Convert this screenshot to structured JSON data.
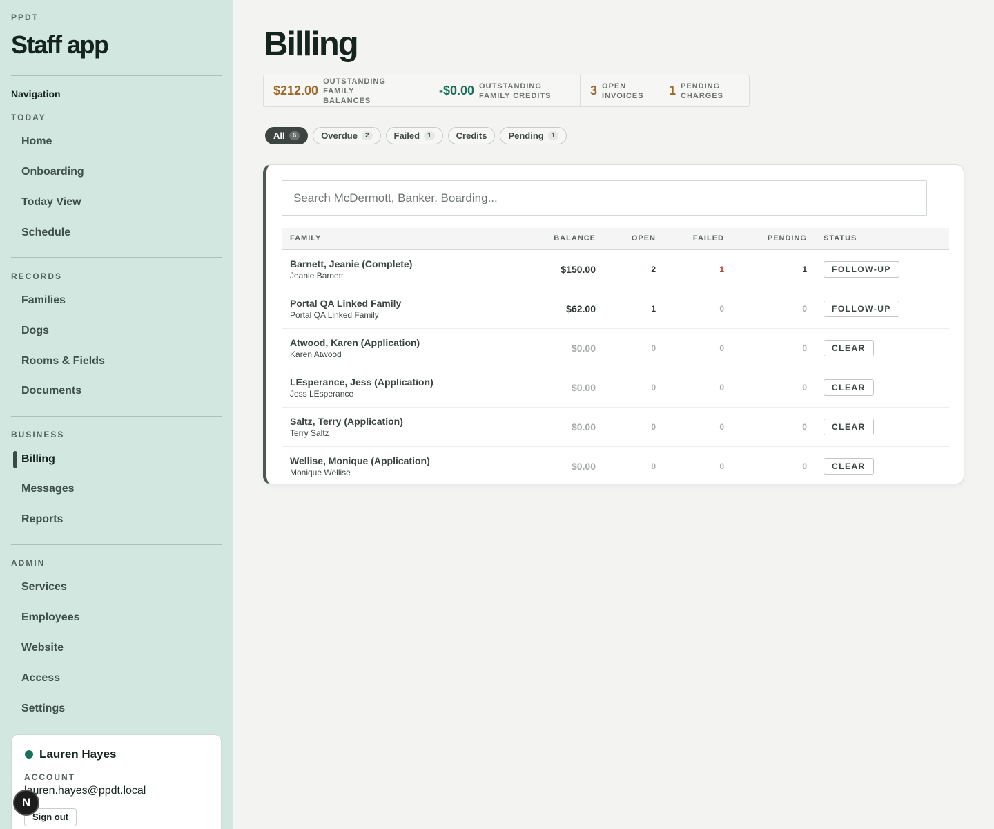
{
  "sidebar": {
    "brand_small": "PPDT",
    "brand_title": "Staff app",
    "nav_heading": "Navigation",
    "sections": {
      "today": {
        "label": "TODAY",
        "items": [
          "Home",
          "Onboarding",
          "Today View",
          "Schedule"
        ]
      },
      "records": {
        "label": "RECORDS",
        "items": [
          "Families",
          "Dogs",
          "Rooms & Fields",
          "Documents"
        ]
      },
      "business": {
        "label": "BUSINESS",
        "items": [
          "Billing",
          "Messages",
          "Reports"
        ]
      },
      "admin": {
        "label": "ADMIN",
        "items": [
          "Services",
          "Employees",
          "Website",
          "Access",
          "Settings"
        ]
      }
    },
    "active_item": "Billing",
    "account": {
      "name": "Lauren Hayes",
      "label": "ACCOUNT",
      "email": "lauren.hayes@ppdt.local",
      "signout_label": "Sign out",
      "status_color": "#1b6f5d"
    },
    "badge_letter": "N"
  },
  "main": {
    "title": "Billing",
    "stats": [
      {
        "value": "$212.00",
        "label1": "OUTSTANDING FAMILY",
        "label2": "BALANCES",
        "color": "#a0692c"
      },
      {
        "value": "-$0.00",
        "label1": "OUTSTANDING",
        "label2": "FAMILY CREDITS",
        "color": "#1b6f5d"
      },
      {
        "value": "3",
        "label1": "OPEN",
        "label2": "INVOICES",
        "color": "#a0692c"
      },
      {
        "value": "1",
        "label1": "PENDING",
        "label2": "CHARGES",
        "color": "#a0692c"
      }
    ],
    "filters": [
      {
        "label": "All",
        "count": "6",
        "active": true
      },
      {
        "label": "Overdue",
        "count": "2"
      },
      {
        "label": "Failed",
        "count": "1"
      },
      {
        "label": "Credits",
        "count": ""
      },
      {
        "label": "Pending",
        "count": "1"
      }
    ],
    "search": {
      "placeholder": "Search McDermott, Banker, Boarding..."
    },
    "table": {
      "headers": {
        "family": "FAMILY",
        "balance": "BALANCE",
        "open": "OPEN",
        "failed": "FAILED",
        "pending": "PENDING",
        "status": "STATUS"
      },
      "rows": [
        {
          "name": "Barnett, Jeanie (Complete)",
          "contact": "Jeanie Barnett",
          "balance": "$150.00",
          "open": "2",
          "failed": "1",
          "pending": "1",
          "status": "FOLLOW-UP"
        },
        {
          "name": "Portal QA Linked Family",
          "contact": "Portal QA Linked Family",
          "balance": "$62.00",
          "open": "1",
          "failed": "0",
          "pending": "0",
          "status": "FOLLOW-UP"
        },
        {
          "name": "Atwood, Karen (Application)",
          "contact": "Karen Atwood",
          "balance": "$0.00",
          "open": "0",
          "failed": "0",
          "pending": "0",
          "status": "CLEAR"
        },
        {
          "name": "LEsperance, Jess (Application)",
          "contact": "Jess LEsperance",
          "balance": "$0.00",
          "open": "0",
          "failed": "0",
          "pending": "0",
          "status": "CLEAR"
        },
        {
          "name": "Saltz, Terry (Application)",
          "contact": "Terry Saltz",
          "balance": "$0.00",
          "open": "0",
          "failed": "0",
          "pending": "0",
          "status": "CLEAR"
        },
        {
          "name": "Wellise, Monique (Application)",
          "contact": "Monique Wellise",
          "balance": "$0.00",
          "open": "0",
          "failed": "0",
          "pending": "0",
          "status": "CLEAR"
        }
      ]
    }
  }
}
